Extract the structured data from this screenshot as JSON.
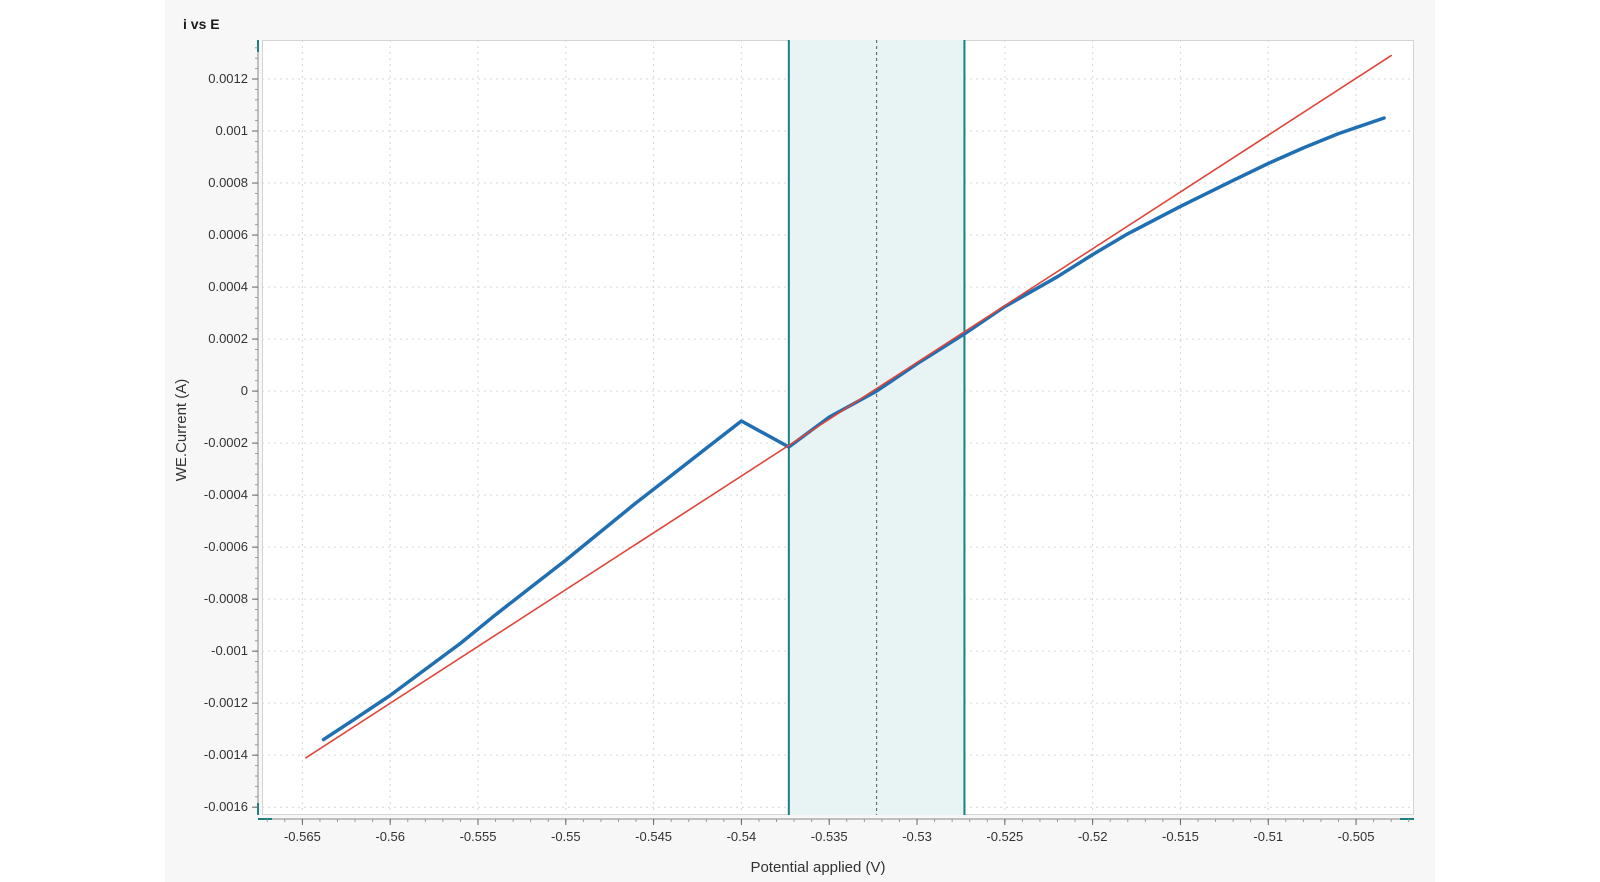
{
  "window": {
    "title": "i vs E"
  },
  "chart_data": {
    "type": "line",
    "title": "i vs E",
    "xlabel": "Potential applied (V)",
    "ylabel": "WE.Current (A)",
    "xlim": [
      -0.5673,
      -0.5017
    ],
    "ylim": [
      -0.00163,
      0.00135
    ],
    "grid": true,
    "x_ticks": [
      -0.565,
      -0.56,
      -0.555,
      -0.55,
      -0.545,
      -0.54,
      -0.535,
      -0.53,
      -0.525,
      -0.52,
      -0.515,
      -0.51,
      -0.505
    ],
    "x_tick_labels": [
      "-0.565",
      "-0.56",
      "-0.555",
      "-0.55",
      "-0.545",
      "-0.54",
      "-0.535",
      "-0.53",
      "-0.525",
      "-0.52",
      "-0.515",
      "-0.51",
      "-0.505"
    ],
    "y_ticks": [
      -0.0016,
      -0.0014,
      -0.0012,
      -0.001,
      -0.0008,
      -0.0006,
      -0.0004,
      -0.0002,
      0,
      0.0002,
      0.0004,
      0.0006,
      0.0008,
      0.001,
      0.0012
    ],
    "y_tick_labels": [
      "-0.0016",
      "-0.0014",
      "-0.0012",
      "-0.001",
      "-0.0008",
      "-0.0006",
      "-0.0004",
      "-0.0002",
      "0",
      "0.0002",
      "0.0004",
      "0.0006",
      "0.0008",
      "0.001",
      "0.0012"
    ],
    "series": [
      {
        "color": "#1f6fb2",
        "x": [
          -0.5638,
          -0.562,
          -0.56,
          -0.558,
          -0.556,
          -0.554,
          -0.552,
          -0.55,
          -0.548,
          -0.546,
          -0.544,
          -0.542,
          -0.54,
          -0.5373,
          -0.535,
          -0.5323,
          -0.53,
          -0.5273,
          -0.525,
          -0.522,
          -0.52,
          -0.518,
          -0.515,
          -0.512,
          -0.51,
          -0.508,
          -0.506,
          -0.5034
        ],
        "y": [
          -0.00134,
          -0.00126,
          -0.00117,
          -0.00107,
          -0.00097,
          -0.00086,
          -0.000755,
          -0.00065,
          -0.00054,
          -0.00043,
          -0.000325,
          -0.00022,
          -0.000115,
          -0.000215,
          -0.0001,
          0.0,
          0.000105,
          0.00022,
          0.000325,
          0.00044,
          0.000525,
          0.000605,
          0.00071,
          0.00081,
          0.000875,
          0.000935,
          0.00099,
          0.00105
        ]
      },
      {
        "color": "#e0453a",
        "x": [
          -0.5648,
          -0.503
        ],
        "y": [
          -0.00141,
          0.00129
        ]
      }
    ],
    "region": {
      "x_start": -0.5373,
      "x_end": -0.5273,
      "x_center": -0.5323,
      "fill": "#e8f4f4",
      "edge_color": "#1a8080"
    }
  }
}
